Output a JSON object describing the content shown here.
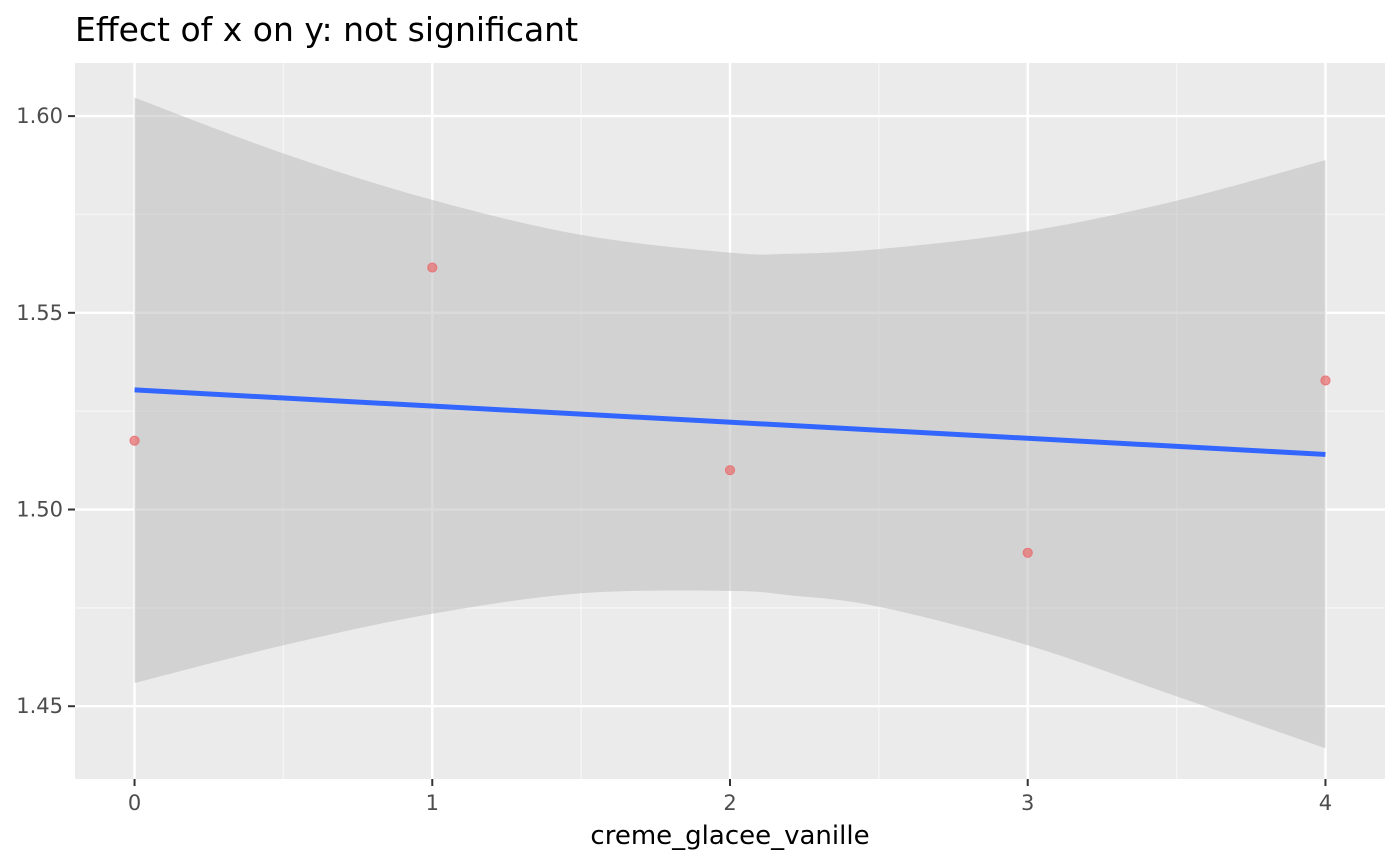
{
  "chart_data": {
    "type": "scatter",
    "title": "Effect of x on y: not significant",
    "xlabel": "creme_glacee_vanille",
    "ylabel": "",
    "xlim": [
      -0.2,
      4.2
    ],
    "ylim": [
      1.4315,
      1.6135
    ],
    "x_ticks": [
      0,
      1,
      2,
      3,
      4
    ],
    "x_tick_labels": [
      "0",
      "1",
      "2",
      "3",
      "4"
    ],
    "y_ticks": [
      1.45,
      1.5,
      1.55,
      1.6
    ],
    "y_tick_labels": [
      "1.45",
      "1.50",
      "1.55",
      "1.60"
    ],
    "grid": true,
    "points": [
      {
        "x": 0,
        "y": 1.5175
      },
      {
        "x": 1,
        "y": 1.5615
      },
      {
        "x": 2,
        "y": 1.51
      },
      {
        "x": 3,
        "y": 1.489
      },
      {
        "x": 4,
        "y": 1.5328
      }
    ],
    "fit_line": {
      "x": [
        0,
        4
      ],
      "y": [
        1.5304,
        1.514
      ]
    },
    "confidence_band": {
      "x": [
        0,
        0.5,
        1,
        1.5,
        2,
        2.2,
        2.5,
        3,
        3.5,
        4
      ],
      "upper": [
        1.6047,
        1.5905,
        1.5787,
        1.5698,
        1.5653,
        1.565,
        1.5662,
        1.5707,
        1.5785,
        1.5888
      ],
      "lower": [
        1.4559,
        1.4655,
        1.4735,
        1.4787,
        1.4793,
        1.4782,
        1.4753,
        1.4655,
        1.4525,
        1.4393
      ]
    },
    "colors": {
      "panel_background": "#ebebeb",
      "grid_major": "#ffffff",
      "grid_minor": "#f5f5f5",
      "points": "#e8696b",
      "fit_line": "#3366ff",
      "band": "#bdbdbd"
    }
  }
}
